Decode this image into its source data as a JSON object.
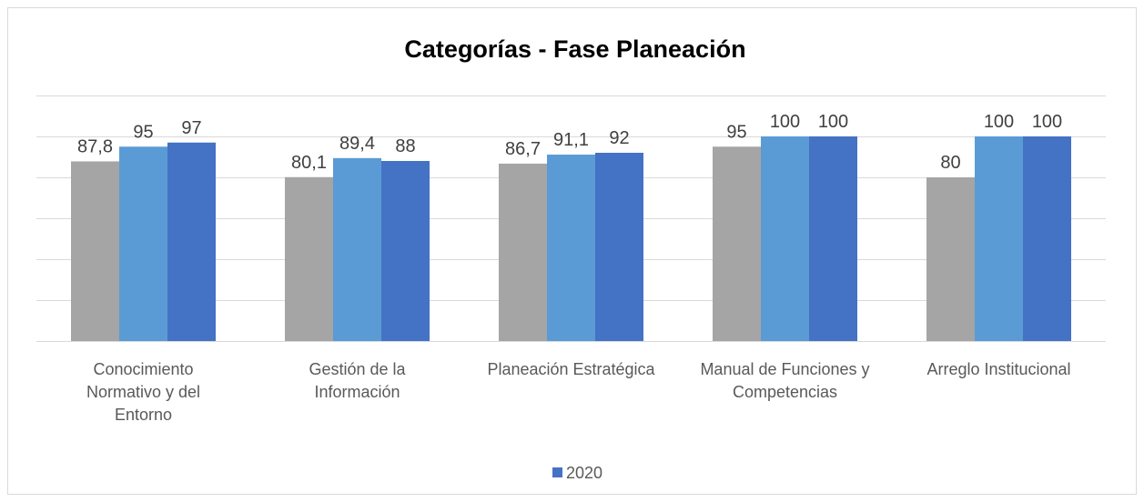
{
  "chart_data": {
    "type": "bar",
    "title": "Categorías - Fase Planeación",
    "categories": [
      "Conocimiento Normativo y del Entorno",
      "Gestión de la Información",
      "Planeación Estratégica",
      "Manual de Funciones y Competencias",
      "Arreglo Institucional"
    ],
    "series": [
      {
        "color": "#a5a5a5",
        "values": [
          87.8,
          80.1,
          86.7,
          95,
          80
        ],
        "value_labels": [
          "87,8",
          "80,1",
          "86,7",
          "95",
          "80"
        ]
      },
      {
        "color": "#5b9bd5",
        "values": [
          95,
          89.4,
          91.1,
          100,
          100
        ],
        "value_labels": [
          "95",
          "89,4",
          "91,1",
          "100",
          "100"
        ]
      },
      {
        "name": "2020",
        "color": "#4472c4",
        "values": [
          97,
          88,
          92,
          100,
          100
        ],
        "value_labels": [
          "97",
          "88",
          "92",
          "100",
          "100"
        ]
      }
    ],
    "ylim": [
      0,
      120
    ],
    "yticks": [
      0,
      20,
      40,
      60,
      80,
      100,
      120
    ],
    "grid": true,
    "legend": "bottom"
  }
}
